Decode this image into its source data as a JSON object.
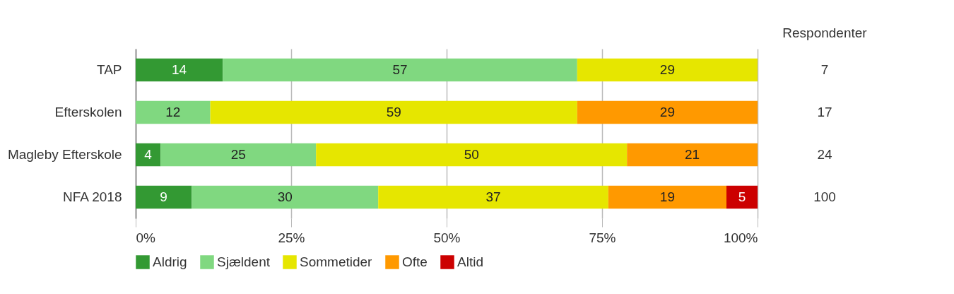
{
  "chart_data": {
    "type": "bar",
    "orientation": "horizontal",
    "stacked": true,
    "categories": [
      "TAP",
      "Efterskolen",
      "Magleby Efterskole",
      "NFA 2018"
    ],
    "series": [
      {
        "name": "Aldrig",
        "color": "#339933",
        "values": [
          14,
          null,
          4,
          9
        ]
      },
      {
        "name": "Sjældent",
        "color": "#80d880",
        "values": [
          57,
          12,
          25,
          30
        ]
      },
      {
        "name": "Sommetider",
        "color": "#e6e600",
        "values": [
          29,
          59,
          50,
          37
        ]
      },
      {
        "name": "Ofte",
        "color": "#ff9900",
        "values": [
          null,
          29,
          21,
          19
        ]
      },
      {
        "name": "Altid",
        "color": "#cc0000",
        "values": [
          null,
          null,
          null,
          5
        ]
      }
    ],
    "xlim": [
      0,
      100
    ],
    "xticks": [
      {
        "value": 0,
        "label": "0%"
      },
      {
        "value": 25,
        "label": "25%"
      },
      {
        "value": 50,
        "label": "50%"
      },
      {
        "value": 75,
        "label": "75%"
      },
      {
        "value": 100,
        "label": "100%"
      }
    ],
    "grid": "x",
    "legend": "bottom",
    "data_labels": true,
    "annotations": [
      "Respondenter",
      "7",
      "17",
      "24",
      "100"
    ]
  }
}
